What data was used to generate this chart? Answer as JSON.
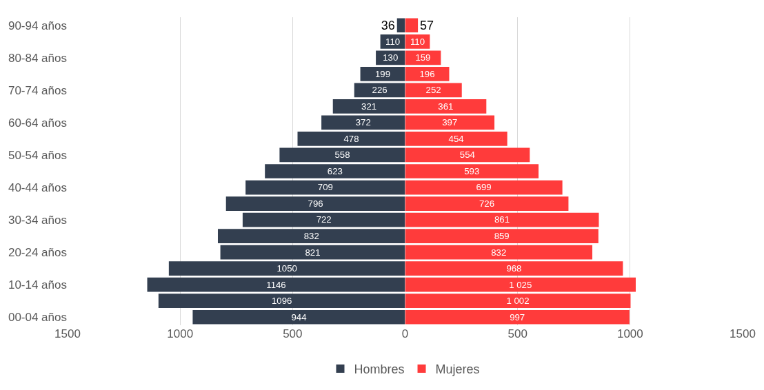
{
  "chart_data": [
    {
      "type": "bar",
      "orientation": "horizontal",
      "categories": [
        "90-94 años",
        null,
        "80-84 años",
        null,
        "70-74 años",
        null,
        "60-64 años",
        null,
        "50-54 años",
        null,
        "40-44 años",
        null,
        "30-34 años",
        null,
        "20-24 años",
        null,
        "10-14 años",
        null,
        "00-04 años"
      ],
      "series": [
        {
          "name": "Hombres",
          "color": "#333f50",
          "values": [
            36,
            110,
            130,
            199,
            226,
            321,
            372,
            478,
            558,
            623,
            709,
            796,
            722,
            832,
            821,
            1050,
            1146,
            1096,
            944
          ]
        }
      ],
      "data_labels": true,
      "xlim": [
        1500,
        0
      ],
      "xticks": [
        1500,
        1000,
        500,
        0
      ],
      "grid": "x",
      "legend": "bottom"
    },
    {
      "type": "bar",
      "orientation": "horizontal",
      "categories": [
        "90-94 años",
        null,
        "80-84 años",
        null,
        "70-74 años",
        null,
        "60-64 años",
        null,
        "50-54 años",
        null,
        "40-44 años",
        null,
        "30-34 años",
        null,
        "20-24 años",
        null,
        "10-14 años",
        null,
        "00-04 años"
      ],
      "series": [
        {
          "name": "Mujeres",
          "color": "#ff3b3b",
          "values": [
            57,
            110,
            159,
            196,
            252,
            361,
            397,
            454,
            554,
            593,
            699,
            726,
            861,
            859,
            832,
            968,
            1025,
            1002,
            997
          ],
          "value_labels": [
            "57",
            "110",
            "159",
            "196",
            "252",
            "361",
            "397",
            "454",
            "554",
            "593",
            "699",
            "726",
            "861",
            "859",
            "832",
            "968",
            "1 025",
            "1 002",
            "997"
          ]
        }
      ],
      "xlim": [
        0,
        1500
      ],
      "xticks": [
        500,
        1000,
        1500
      ],
      "grid": "x",
      "legend": "bottom",
      "tick_labels": "x"
    }
  ]
}
